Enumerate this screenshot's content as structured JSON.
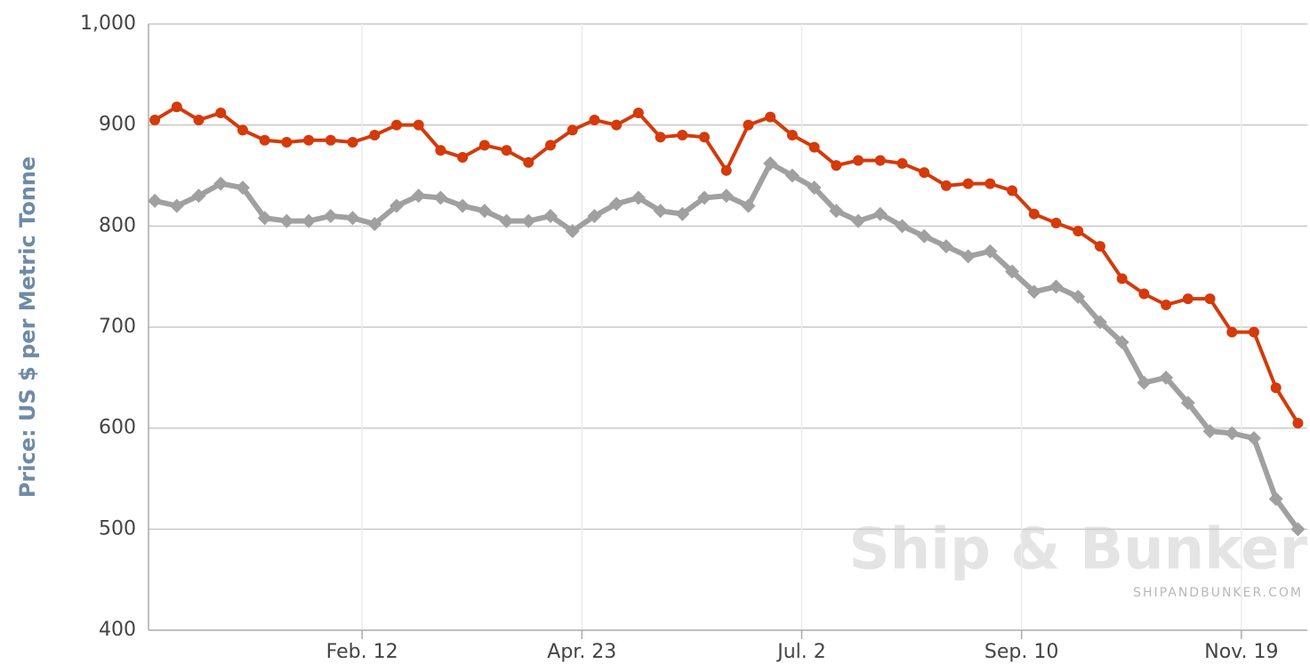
{
  "chart_data": {
    "type": "line",
    "y_label": "Price: US $ per Metric Tonne",
    "watermark": "Ship & Bunker",
    "watermark_url": "SHIPANDBUNKER.COM",
    "x": [
      0,
      7,
      14,
      21,
      28,
      35,
      42,
      49,
      56,
      63,
      70,
      77,
      84,
      91,
      98,
      105,
      112,
      119,
      126,
      133,
      140,
      147,
      154,
      161,
      168,
      175,
      182,
      189,
      196,
      203,
      210,
      217,
      224,
      231,
      238,
      245,
      252,
      259,
      266,
      273,
      280,
      287,
      294,
      301,
      308,
      315,
      322,
      329,
      336,
      343,
      350,
      357,
      364
    ],
    "series": [
      {
        "color": "#d43a0a",
        "marker": "circle",
        "values": [
          905,
          918,
          905,
          912,
          895,
          885,
          883,
          885,
          885,
          883,
          890,
          900,
          900,
          875,
          868,
          880,
          875,
          863,
          880,
          895,
          905,
          900,
          912,
          888,
          890,
          888,
          855,
          900,
          908,
          890,
          878,
          860,
          865,
          865,
          862,
          853,
          840,
          842,
          842,
          835,
          812,
          803,
          795,
          780,
          748,
          733,
          722,
          728,
          728,
          695,
          695,
          640,
          605
        ]
      },
      {
        "color": "#a0a0a0",
        "marker": "diamond",
        "values": [
          825,
          820,
          830,
          842,
          838,
          808,
          805,
          805,
          810,
          808,
          802,
          820,
          830,
          828,
          820,
          815,
          805,
          805,
          810,
          795,
          810,
          822,
          828,
          815,
          812,
          828,
          830,
          820,
          862,
          850,
          838,
          815,
          805,
          812,
          800,
          790,
          780,
          770,
          775,
          755,
          735,
          740,
          730,
          705,
          685,
          645,
          650,
          625,
          597,
          595,
          590,
          530,
          500
        ]
      }
    ],
    "xlim": [
      -2,
      367
    ],
    "xticks": [
      {
        "value": 66,
        "label": "Feb. 12"
      },
      {
        "value": 136,
        "label": "Apr. 23"
      },
      {
        "value": 206,
        "label": "Jul. 2"
      },
      {
        "value": 276,
        "label": "Sep. 10"
      },
      {
        "value": 346,
        "label": "Nov. 19"
      }
    ],
    "ylim": [
      400,
      1000
    ],
    "yticks": [
      400,
      500,
      600,
      700,
      800,
      900,
      {
        "value": 1000,
        "label": "1,000"
      }
    ],
    "grid": true
  }
}
